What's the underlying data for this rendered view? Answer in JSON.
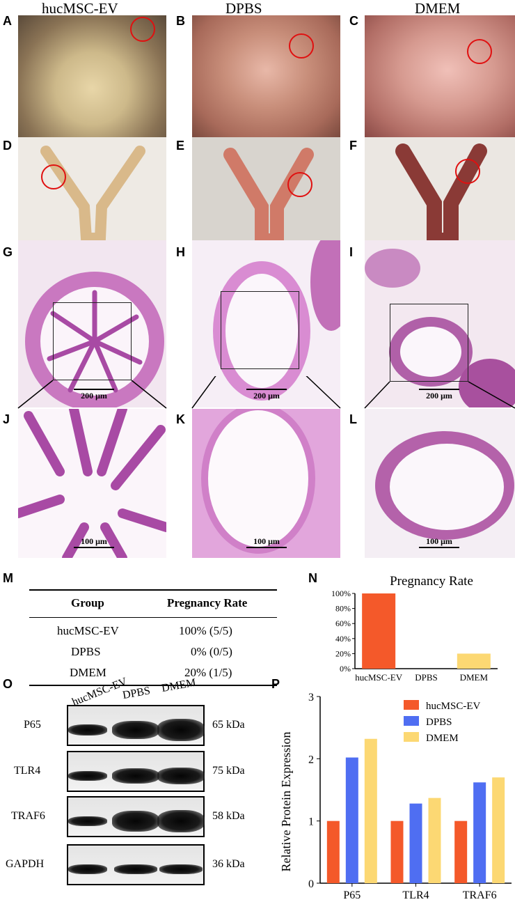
{
  "columns": [
    "hucMSC-EV",
    "DPBS",
    "DMEM"
  ],
  "panel_letters": [
    "A",
    "B",
    "C",
    "D",
    "E",
    "F",
    "G",
    "H",
    "I",
    "J",
    "K",
    "L",
    "M",
    "N",
    "O",
    "P"
  ],
  "scale_labels": {
    "low": "200 μm",
    "high": "100 μm"
  },
  "table": {
    "headers": [
      "Group",
      "Pregnancy Rate"
    ],
    "rows": [
      [
        "hucMSC-EV",
        "100% (5/5)"
      ],
      [
        "DPBS",
        "0% (0/5)"
      ],
      [
        "DMEM",
        "20% (1/5)"
      ]
    ]
  },
  "blot": {
    "lane_labels": [
      "hucMSC-EV",
      "DPBS",
      "DMEM"
    ],
    "rows": [
      {
        "protein": "P65",
        "kda": "65 kDa"
      },
      {
        "protein": "TLR4",
        "kda": "75 kDa"
      },
      {
        "protein": "TRAF6",
        "kda": "58 kDa"
      },
      {
        "protein": "GAPDH",
        "kda": "36 kDa"
      }
    ]
  },
  "colors": {
    "huc": "#f4592a",
    "dpbs": "#4f6ef2",
    "dmem": "#fcd873",
    "circle": "#e01010"
  },
  "chart_data": [
    {
      "type": "bar",
      "title": "Pregnancy Rate",
      "categories": [
        "hucMSC-EV",
        "DPBS",
        "DMEM"
      ],
      "values": [
        100,
        0,
        20
      ],
      "yticks": [
        "0%",
        "20%",
        "40%",
        "60%",
        "80%",
        "100%"
      ],
      "ylim": [
        0,
        100
      ],
      "xlabel": "",
      "ylabel": ""
    },
    {
      "type": "bar",
      "title": "",
      "categories": [
        "P65",
        "TLR4",
        "TRAF6"
      ],
      "series": [
        {
          "name": "hucMSC-EV",
          "values": [
            1.0,
            1.0,
            1.0
          ]
        },
        {
          "name": "DPBS",
          "values": [
            2.02,
            1.28,
            1.62
          ]
        },
        {
          "name": "DMEM",
          "values": [
            2.32,
            1.37,
            1.7
          ]
        }
      ],
      "yticks": [
        "0",
        "1",
        "2",
        "3"
      ],
      "ylim": [
        0,
        3
      ],
      "ylabel": "Relative Protein Expression",
      "legend": "top-right"
    }
  ]
}
